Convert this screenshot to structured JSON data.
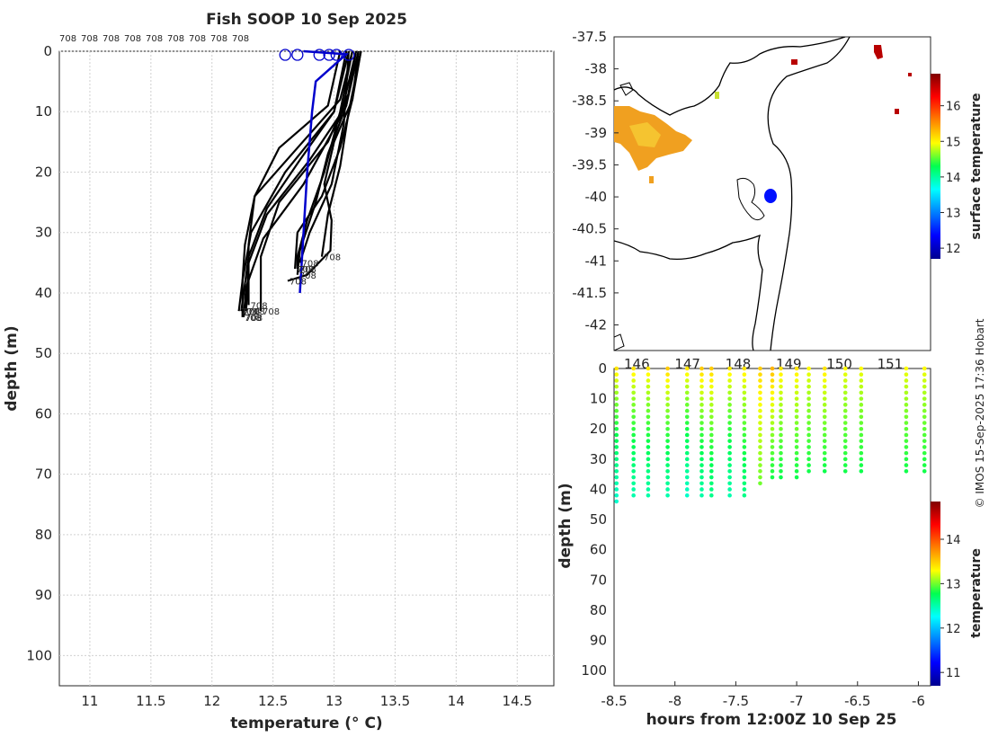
{
  "title": "Fish SOOP 10 Sep 2025",
  "credit": "© IMOS 15-Sep-2025 17:36 Hobart",
  "colors": {
    "profile_line": "#000000",
    "latest_profile": "#0000cc",
    "grid": "#d0d0d0",
    "axis": "#262626"
  },
  "chart_data": [
    {
      "name": "profile-plot",
      "type": "line",
      "title": "Fish SOOP 10 Sep 2025",
      "xlabel": "temperature (° C)",
      "ylabel": "depth (m)",
      "xlim": [
        10.75,
        14.8
      ],
      "ylim": [
        0,
        105
      ],
      "y_reversed": true,
      "xticks": [
        11,
        11.5,
        12,
        12.5,
        13,
        13.5,
        14,
        14.5
      ],
      "xtick_labels": [
        "11",
        "11.5",
        "12",
        "12.5",
        "13",
        "13.5",
        "14",
        "14.5"
      ],
      "yticks": [
        0,
        10,
        20,
        30,
        40,
        50,
        60,
        70,
        80,
        90,
        100
      ],
      "ytick_labels": [
        "0",
        "10",
        "20",
        "30",
        "40",
        "50",
        "60",
        "70",
        "80",
        "90",
        "100"
      ],
      "grid": true,
      "top_labels": [
        "708",
        "708",
        "708",
        "708",
        "708",
        "708",
        "708",
        "708",
        "708"
      ],
      "end_label": "708",
      "series": [
        {
          "name": "p1",
          "depth": [
            0,
            8,
            16,
            24,
            32,
            38,
            44
          ],
          "temp": [
            13.15,
            13.05,
            12.7,
            12.35,
            12.27,
            12.25,
            12.25
          ]
        },
        {
          "name": "p2",
          "depth": [
            0,
            9,
            18,
            27,
            35,
            43
          ],
          "temp": [
            13.2,
            13.1,
            12.8,
            12.45,
            12.3,
            12.28
          ]
        },
        {
          "name": "p3",
          "depth": [
            0,
            10,
            20,
            30,
            38,
            43
          ],
          "temp": [
            13.1,
            13.0,
            12.6,
            12.32,
            12.25,
            12.22
          ]
        },
        {
          "name": "p4",
          "depth": [
            0,
            11,
            22,
            31,
            39,
            44
          ],
          "temp": [
            13.18,
            13.05,
            12.75,
            12.42,
            12.28,
            12.26
          ]
        },
        {
          "name": "p5",
          "depth": [
            0,
            7,
            15,
            25,
            34,
            43
          ],
          "temp": [
            13.2,
            13.12,
            12.95,
            12.55,
            12.4,
            12.4
          ]
        },
        {
          "name": "p6",
          "depth": [
            0,
            9,
            16,
            24,
            32,
            42
          ],
          "temp": [
            13.05,
            12.95,
            12.55,
            12.35,
            12.3,
            12.3
          ]
        },
        {
          "name": "p7",
          "depth": [
            0,
            10,
            18,
            26,
            34,
            43
          ],
          "temp": [
            13.12,
            13.0,
            12.72,
            12.45,
            12.3,
            12.24
          ]
        },
        {
          "name": "p8",
          "depth": [
            0,
            8,
            16,
            24,
            30,
            36
          ],
          "temp": [
            13.22,
            13.15,
            13.05,
            12.9,
            12.7,
            12.68
          ]
        },
        {
          "name": "p9",
          "depth": [
            0,
            9,
            17,
            25,
            33,
            37
          ],
          "temp": [
            13.18,
            13.1,
            12.95,
            12.85,
            12.72,
            12.7
          ]
        },
        {
          "name": "p10",
          "depth": [
            0,
            10,
            20,
            28,
            34,
            36
          ],
          "temp": [
            13.15,
            13.05,
            12.92,
            12.78,
            12.7,
            12.7
          ]
        },
        {
          "name": "p11",
          "depth": [
            0,
            12,
            22,
            30,
            35
          ],
          "temp": [
            13.12,
            13.08,
            12.98,
            12.8,
            12.72
          ]
        },
        {
          "name": "p12",
          "depth": [
            0,
            8,
            15,
            22,
            28,
            33,
            37,
            38
          ],
          "temp": [
            13.2,
            13.15,
            13.0,
            12.92,
            12.98,
            12.97,
            12.78,
            12.62
          ]
        },
        {
          "name": "p13",
          "depth": [
            0,
            10,
            19,
            27,
            34
          ],
          "temp": [
            13.22,
            13.12,
            13.05,
            12.95,
            12.9
          ]
        }
      ],
      "latest": {
        "depth": [
          0,
          0.5,
          5,
          10,
          20,
          30,
          40
        ],
        "temp": [
          12.75,
          13.1,
          12.85,
          12.82,
          12.78,
          12.75,
          12.72
        ]
      },
      "surface_markers": [
        12.6,
        12.7,
        12.88,
        12.96,
        13.02,
        13.12
      ]
    },
    {
      "name": "sst-map",
      "type": "heatmap",
      "ylim": [
        -42.4,
        -37.5
      ],
      "xlim": [
        145.55,
        151.8
      ],
      "yticks": [
        -37.5,
        -38,
        -38.5,
        -39,
        -39.5,
        -40,
        -40.5,
        -41,
        -41.5,
        -42
      ],
      "ytick_labels": [
        "-37.5",
        "-38",
        "-38.5",
        "-39",
        "-39.5",
        "-40",
        "-40.5",
        "-41",
        "-41.5",
        "-42"
      ],
      "xtick_labels": [
        "146",
        "147",
        "148",
        "149",
        "150",
        "151"
      ],
      "colorbar": {
        "label": "surface temperature",
        "range": [
          11.7,
          16.9
        ],
        "ticks": [
          12,
          13,
          14,
          15,
          16
        ],
        "tick_labels": [
          "12",
          "13",
          "14",
          "15",
          "16"
        ]
      },
      "vessel_position": {
        "lon": 148.65,
        "lat": -40.05
      }
    },
    {
      "name": "timeline-scatter",
      "type": "scatter",
      "xlabel": "hours from 12:00Z 10 Sep 25",
      "ylabel": "depth (m)",
      "xlim": [
        -8.5,
        -5.9
      ],
      "ylim": [
        0,
        105
      ],
      "y_reversed": true,
      "xticks": [
        -8.5,
        -8,
        -7.5,
        -7,
        -6.5,
        -6
      ],
      "xtick_labels": [
        "-8.5",
        "-8",
        "-7.5",
        "-7",
        "-6.5",
        "-6"
      ],
      "yticks": [
        0,
        10,
        20,
        30,
        40,
        50,
        60,
        70,
        80,
        90,
        100
      ],
      "ytick_labels": [
        "0",
        "10",
        "20",
        "30",
        "40",
        "50",
        "60",
        "70",
        "80",
        "90",
        "100"
      ],
      "colorbar": {
        "label": "temperature",
        "range": [
          10.7,
          14.85
        ],
        "ticks": [
          11,
          12,
          13,
          14
        ],
        "tick_labels": [
          "11",
          "12",
          "13",
          "14"
        ]
      },
      "casts": [
        {
          "hour": -8.48,
          "max_depth": 44,
          "t_surface": 13.4,
          "t_bottom": 12.4
        },
        {
          "hour": -8.34,
          "max_depth": 42,
          "t_surface": 13.4,
          "t_bottom": 12.5
        },
        {
          "hour": -8.22,
          "max_depth": 43,
          "t_surface": 13.4,
          "t_bottom": 12.5
        },
        {
          "hour": -8.06,
          "max_depth": 42,
          "t_surface": 13.5,
          "t_bottom": 12.5
        },
        {
          "hour": -7.9,
          "max_depth": 43,
          "t_surface": 13.4,
          "t_bottom": 12.4
        },
        {
          "hour": -7.78,
          "max_depth": 43,
          "t_surface": 13.5,
          "t_bottom": 12.5
        },
        {
          "hour": -7.7,
          "max_depth": 42,
          "t_surface": 13.5,
          "t_bottom": 12.6
        },
        {
          "hour": -7.55,
          "max_depth": 42,
          "t_surface": 13.4,
          "t_bottom": 12.5
        },
        {
          "hour": -7.43,
          "max_depth": 43,
          "t_surface": 13.4,
          "t_bottom": 12.6
        },
        {
          "hour": -7.3,
          "max_depth": 38,
          "t_surface": 13.5,
          "t_bottom": 13.0
        },
        {
          "hour": -7.2,
          "max_depth": 37,
          "t_surface": 13.6,
          "t_bottom": 12.8
        },
        {
          "hour": -7.13,
          "max_depth": 36,
          "t_surface": 13.4,
          "t_bottom": 12.8
        },
        {
          "hour": -7.0,
          "max_depth": 36,
          "t_surface": 13.4,
          "t_bottom": 12.8
        },
        {
          "hour": -6.9,
          "max_depth": 35,
          "t_surface": 13.3,
          "t_bottom": 12.8
        },
        {
          "hour": -6.77,
          "max_depth": 34,
          "t_surface": 13.4,
          "t_bottom": 12.8
        },
        {
          "hour": -6.6,
          "max_depth": 35,
          "t_surface": 13.3,
          "t_bottom": 12.8
        },
        {
          "hour": -6.47,
          "max_depth": 34,
          "t_surface": 13.3,
          "t_bottom": 12.8
        },
        {
          "hour": -6.1,
          "max_depth": 35,
          "t_surface": 13.3,
          "t_bottom": 12.8
        },
        {
          "hour": -5.95,
          "max_depth": 35,
          "t_surface": 13.3,
          "t_bottom": 12.8
        }
      ]
    }
  ]
}
